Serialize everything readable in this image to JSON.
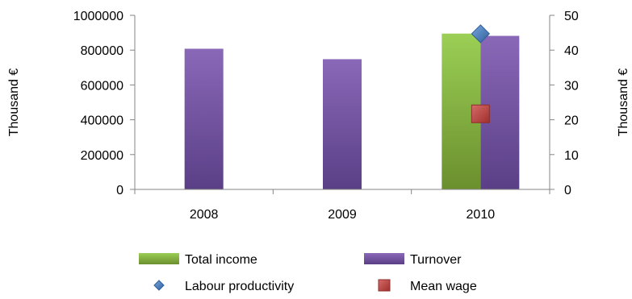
{
  "chart_data": {
    "type": "bar",
    "categories": [
      "2008",
      "2009",
      "2010"
    ],
    "ylabel": "Thousand €",
    "y2label": "Thousand €",
    "ylim": [
      0,
      1000000
    ],
    "y2lim": [
      0,
      50
    ],
    "yticks": [
      "0",
      "200000",
      "400000",
      "600000",
      "800000",
      "1000000"
    ],
    "y2ticks": [
      "0",
      "10",
      "20",
      "30",
      "40",
      "50"
    ],
    "grid": false,
    "legend_position": "bottom",
    "series": [
      {
        "name": "Total income",
        "type": "bar",
        "axis": "left",
        "values": [
          null,
          null,
          895000
        ],
        "color_top": "#9bcf55",
        "color_bottom": "#6b8f2e"
      },
      {
        "name": "Turnover",
        "type": "bar",
        "axis": "left",
        "values": [
          808000,
          748000,
          882000
        ],
        "color_top": "#8a68b8",
        "color_bottom": "#5a3f86"
      },
      {
        "name": "Labour productivity",
        "type": "marker",
        "marker": "diamond",
        "axis": "right",
        "values": [
          null,
          null,
          44.7
        ],
        "color": "#4f81bd"
      },
      {
        "name": "Mean wage",
        "type": "marker",
        "marker": "square",
        "axis": "right",
        "values": [
          null,
          null,
          21.7
        ],
        "color": "#c0504d"
      }
    ]
  }
}
